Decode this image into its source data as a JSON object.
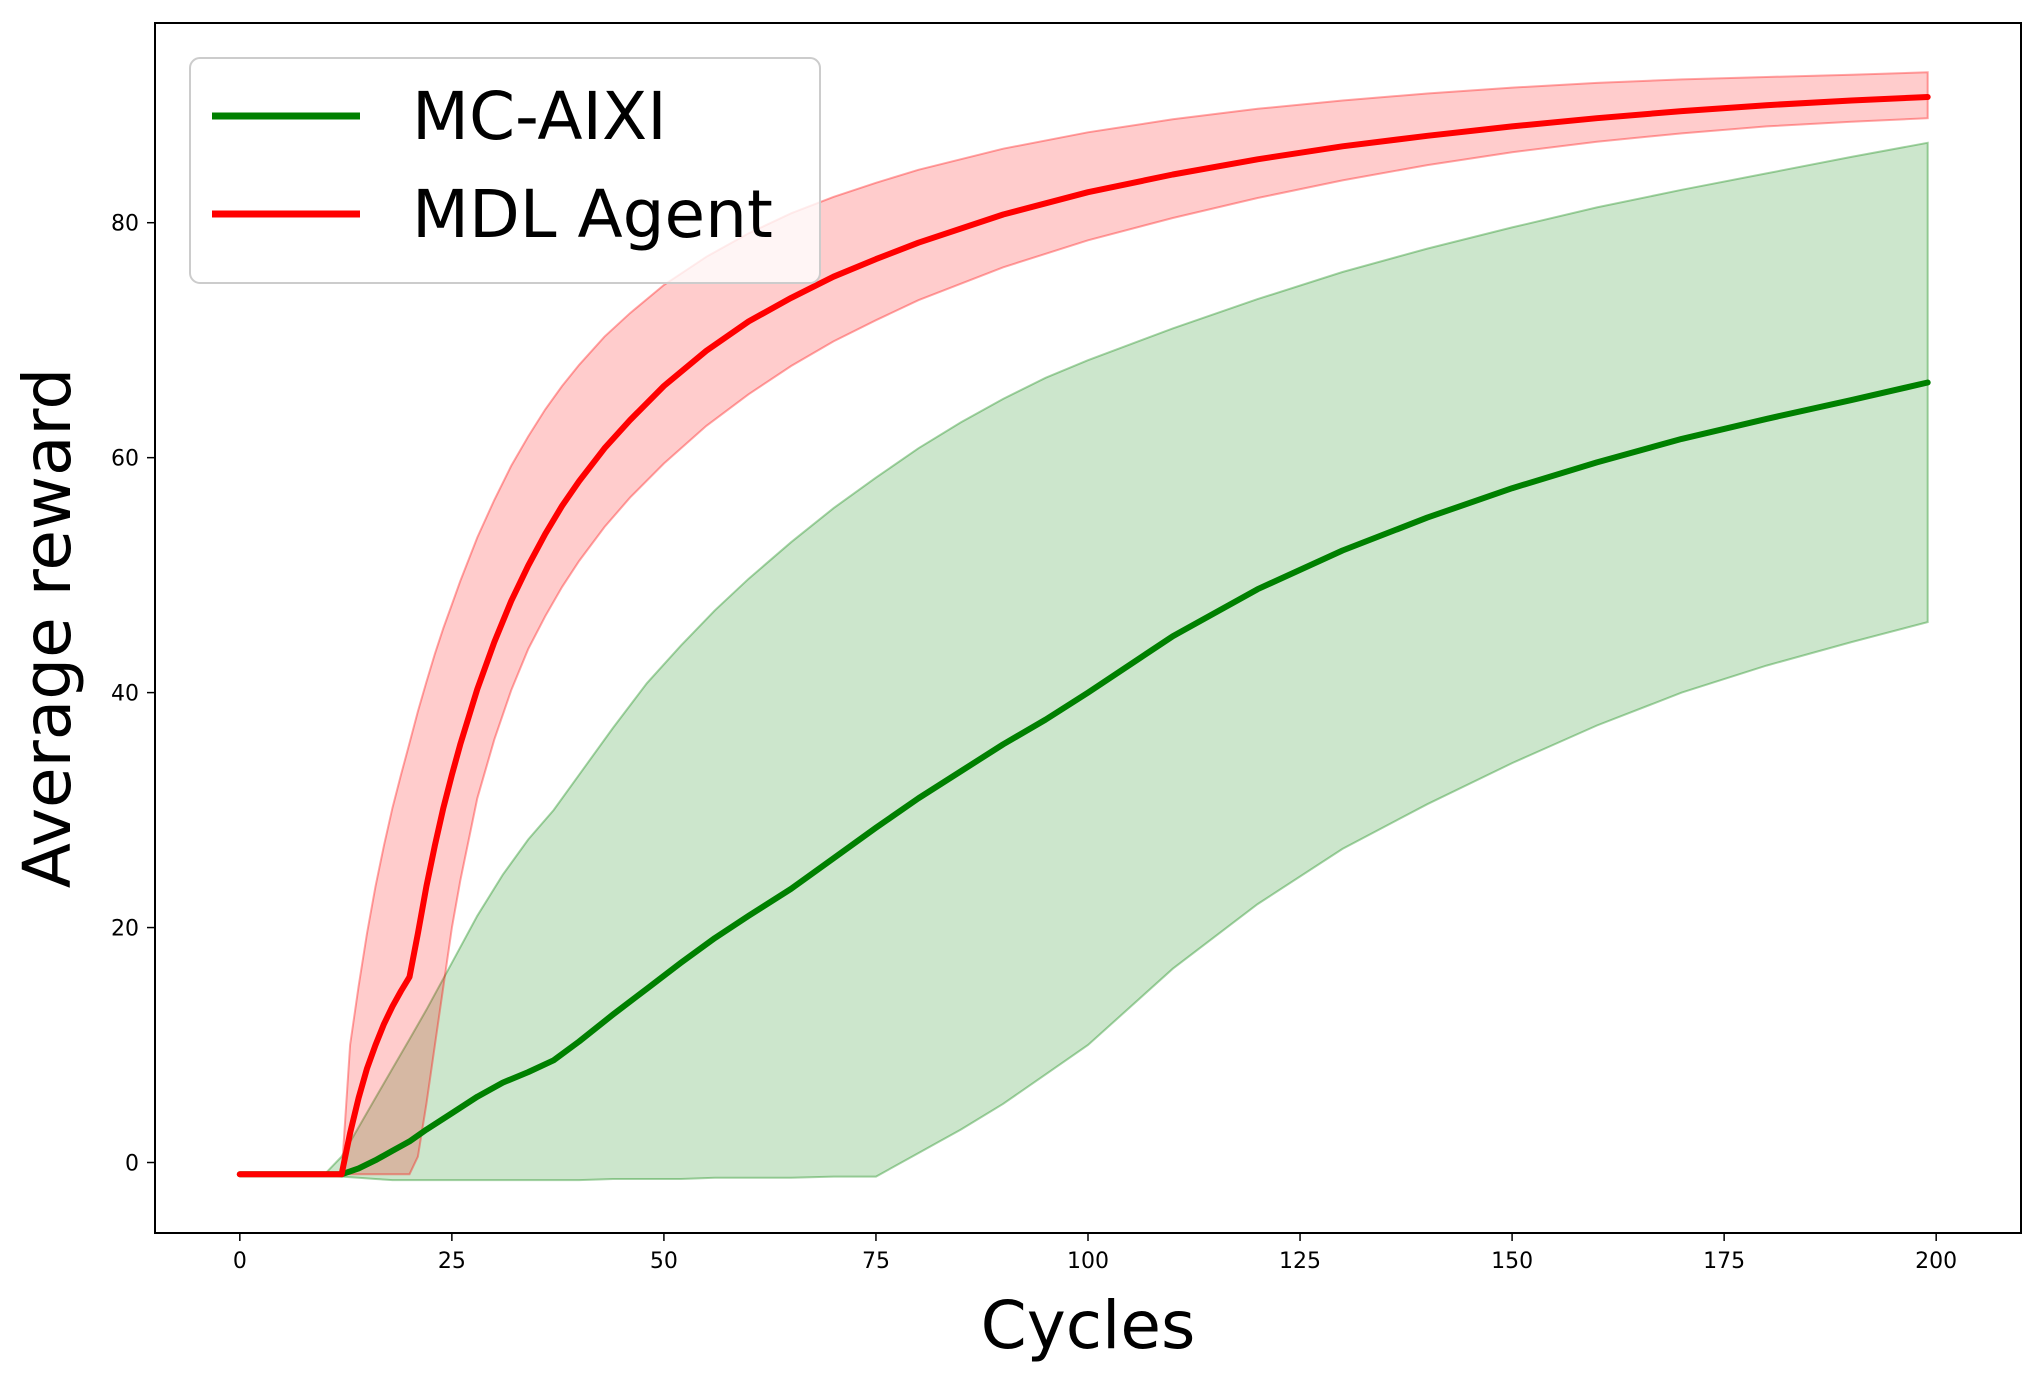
{
  "chart_data": {
    "type": "line",
    "title": "",
    "xlabel": "Cycles",
    "ylabel": "Average reward",
    "xlim": [
      -10,
      210
    ],
    "ylim": [
      -6,
      97
    ],
    "xticks": [
      0,
      25,
      50,
      75,
      100,
      125,
      150,
      175,
      200
    ],
    "yticks": [
      0,
      20,
      40,
      60,
      80
    ],
    "grid": false,
    "legend_position": "top-left",
    "series": [
      {
        "name": "MC-AIXI",
        "color": "#008000",
        "x": [
          0,
          10,
          12,
          14,
          16,
          18,
          20,
          22,
          25,
          28,
          31,
          34,
          37,
          40,
          44,
          48,
          52,
          56,
          60,
          65,
          70,
          75,
          80,
          85,
          90,
          95,
          100,
          110,
          120,
          130,
          140,
          150,
          160,
          170,
          180,
          190,
          199
        ],
        "y": [
          -1,
          -1,
          -1,
          -0.5,
          0.2,
          1.0,
          1.8,
          2.8,
          4.2,
          5.6,
          6.8,
          7.7,
          8.7,
          10.3,
          12.6,
          14.8,
          17.0,
          19.1,
          21.0,
          23.3,
          25.9,
          28.5,
          31.0,
          33.3,
          35.6,
          37.7,
          40.0,
          44.8,
          48.8,
          52.1,
          54.9,
          57.4,
          59.6,
          61.6,
          63.3,
          64.9,
          66.4
        ],
        "upper": [
          -1,
          -1,
          0.5,
          3.0,
          5.5,
          8.0,
          10.5,
          13.0,
          17.0,
          21.0,
          24.5,
          27.5,
          30.0,
          33.0,
          37.0,
          40.8,
          44.0,
          47.0,
          49.7,
          52.8,
          55.7,
          58.3,
          60.8,
          63.0,
          65.0,
          66.8,
          68.3,
          71.0,
          73.5,
          75.8,
          77.8,
          79.6,
          81.3,
          82.8,
          84.2,
          85.6,
          86.8
        ],
        "lower": [
          -1,
          -1,
          -1.2,
          -1.3,
          -1.4,
          -1.5,
          -1.5,
          -1.5,
          -1.5,
          -1.5,
          -1.5,
          -1.5,
          -1.5,
          -1.5,
          -1.4,
          -1.4,
          -1.4,
          -1.3,
          -1.3,
          -1.3,
          -1.2,
          -1.2,
          0.8,
          2.8,
          5.0,
          7.5,
          10.0,
          16.5,
          22.0,
          26.7,
          30.5,
          34.0,
          37.2,
          40.0,
          42.3,
          44.3,
          46.0
        ]
      },
      {
        "name": "MDL Agent",
        "color": "#ff0000",
        "x": [
          0,
          10,
          12,
          13,
          14,
          15,
          16,
          17,
          18,
          19,
          20,
          21,
          22,
          23,
          24,
          25,
          26,
          28,
          30,
          32,
          34,
          36,
          38,
          40,
          43,
          46,
          50,
          55,
          60,
          65,
          70,
          75,
          80,
          90,
          100,
          110,
          120,
          130,
          140,
          150,
          160,
          170,
          180,
          190,
          199
        ],
        "y": [
          -1,
          -1,
          -1,
          2.5,
          5.5,
          8.0,
          10.0,
          11.8,
          13.3,
          14.6,
          15.8,
          19.5,
          23.5,
          27.0,
          30.2,
          33.0,
          35.6,
          40.3,
          44.3,
          47.8,
          50.8,
          53.5,
          55.9,
          58.0,
          60.8,
          63.2,
          66.1,
          69.1,
          71.6,
          73.6,
          75.4,
          76.9,
          78.3,
          80.7,
          82.6,
          84.1,
          85.4,
          86.5,
          87.4,
          88.2,
          88.9,
          89.5,
          90.0,
          90.4,
          90.7
        ],
        "upper": [
          -1,
          -1,
          -1,
          10.0,
          15.0,
          19.5,
          23.5,
          27.0,
          30.2,
          33.0,
          35.7,
          38.4,
          40.9,
          43.3,
          45.5,
          47.5,
          49.5,
          53.2,
          56.4,
          59.3,
          61.8,
          64.1,
          66.1,
          67.9,
          70.3,
          72.3,
          74.7,
          77.1,
          79.1,
          80.8,
          82.2,
          83.4,
          84.5,
          86.3,
          87.7,
          88.8,
          89.7,
          90.4,
          91.0,
          91.5,
          91.9,
          92.2,
          92.4,
          92.6,
          92.8
        ],
        "lower": [
          -1,
          -1,
          -1,
          -1,
          -1,
          -1,
          -1,
          -1,
          -1,
          -1,
          -1,
          0.5,
          5.0,
          10.0,
          15.0,
          20.0,
          24.0,
          31.0,
          36.0,
          40.2,
          43.7,
          46.5,
          49.0,
          51.2,
          54.1,
          56.6,
          59.5,
          62.7,
          65.4,
          67.8,
          69.9,
          71.7,
          73.4,
          76.2,
          78.5,
          80.4,
          82.1,
          83.6,
          84.9,
          86.0,
          86.9,
          87.6,
          88.2,
          88.6,
          88.9
        ]
      }
    ]
  }
}
